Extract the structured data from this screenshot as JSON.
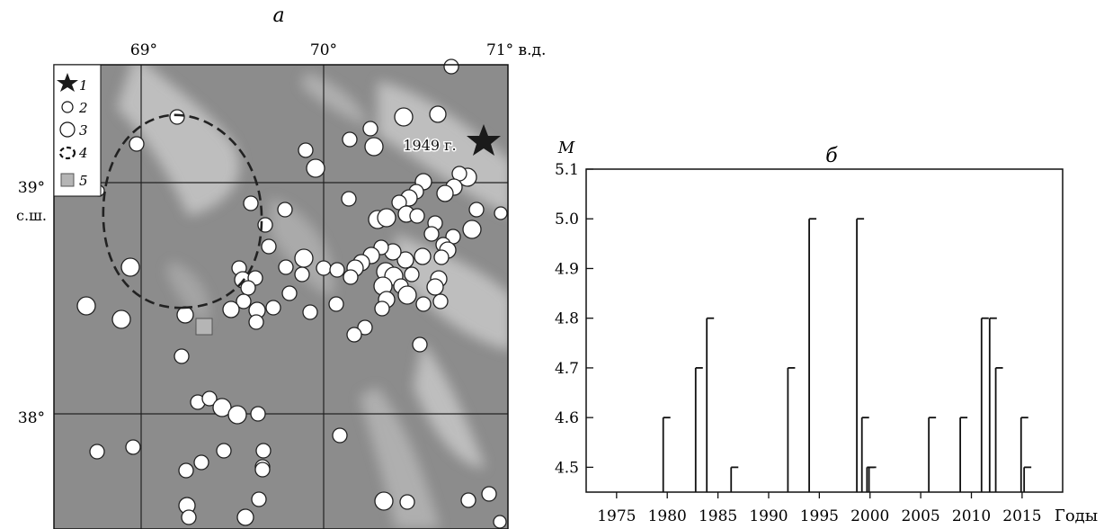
{
  "map": {
    "panel_label": "а",
    "lon_ticks": [
      {
        "value": 69,
        "label": "69°"
      },
      {
        "value": 70,
        "label": "70°"
      },
      {
        "value": 71,
        "label": "71° в.д."
      }
    ],
    "lat_ticks": [
      {
        "value": 39,
        "label": "39°",
        "sublabel": "с.ш."
      },
      {
        "value": 38,
        "label": "38°",
        "sublabel": ""
      }
    ],
    "legend": [
      {
        "num": "1",
        "symbol": "star"
      },
      {
        "num": "2",
        "symbol": "circle-small"
      },
      {
        "num": "3",
        "symbol": "circle-large"
      },
      {
        "num": "4",
        "symbol": "dashed-ellipse"
      },
      {
        "num": "5",
        "symbol": "square"
      }
    ],
    "star_annotation": "1949 г.",
    "colors": {
      "relief_dark": "#8c8c8c",
      "relief_light": "#c8c8c8",
      "grid": "#222222",
      "square": "#b5b5b5"
    }
  },
  "chart_data": {
    "type": "bar",
    "panel_label": "б",
    "ylabel": "М",
    "xlabel": "Годы",
    "xlim": [
      1972,
      2019
    ],
    "ylim": [
      4.45,
      5.1
    ],
    "x_ticks": [
      1975,
      1980,
      1985,
      1990,
      1995,
      2000,
      2005,
      2010,
      2015
    ],
    "x_tick_labels": [
      "1975",
      "1980",
      "1985",
      "1990",
      "1995",
      "2000",
      "2005",
      "2010",
      "2015"
    ],
    "y_ticks": [
      4.5,
      4.6,
      4.7,
      4.8,
      4.9,
      5.0,
      5.1
    ],
    "y_tick_labels": [
      "4.5",
      "4.6",
      "4.7",
      "4.8",
      "4.9",
      "5.0",
      "5.1"
    ],
    "grid": false,
    "events": [
      {
        "year": 1979.6,
        "magnitude": 4.6
      },
      {
        "year": 1982.8,
        "magnitude": 4.7
      },
      {
        "year": 1983.9,
        "magnitude": 4.8
      },
      {
        "year": 1986.3,
        "magnitude": 4.5
      },
      {
        "year": 1991.9,
        "magnitude": 4.7
      },
      {
        "year": 1994.0,
        "magnitude": 5.0
      },
      {
        "year": 1998.7,
        "magnitude": 5.0
      },
      {
        "year": 1999.2,
        "magnitude": 4.6
      },
      {
        "year": 1999.7,
        "magnitude": 4.5
      },
      {
        "year": 1999.9,
        "magnitude": 4.5
      },
      {
        "year": 2005.8,
        "magnitude": 4.6
      },
      {
        "year": 2008.9,
        "magnitude": 4.6
      },
      {
        "year": 2011.0,
        "magnitude": 4.8
      },
      {
        "year": 2011.8,
        "magnitude": 4.8
      },
      {
        "year": 2012.4,
        "magnitude": 4.7
      },
      {
        "year": 2014.9,
        "magnitude": 4.6
      },
      {
        "year": 2015.2,
        "magnitude": 4.5
      }
    ]
  }
}
